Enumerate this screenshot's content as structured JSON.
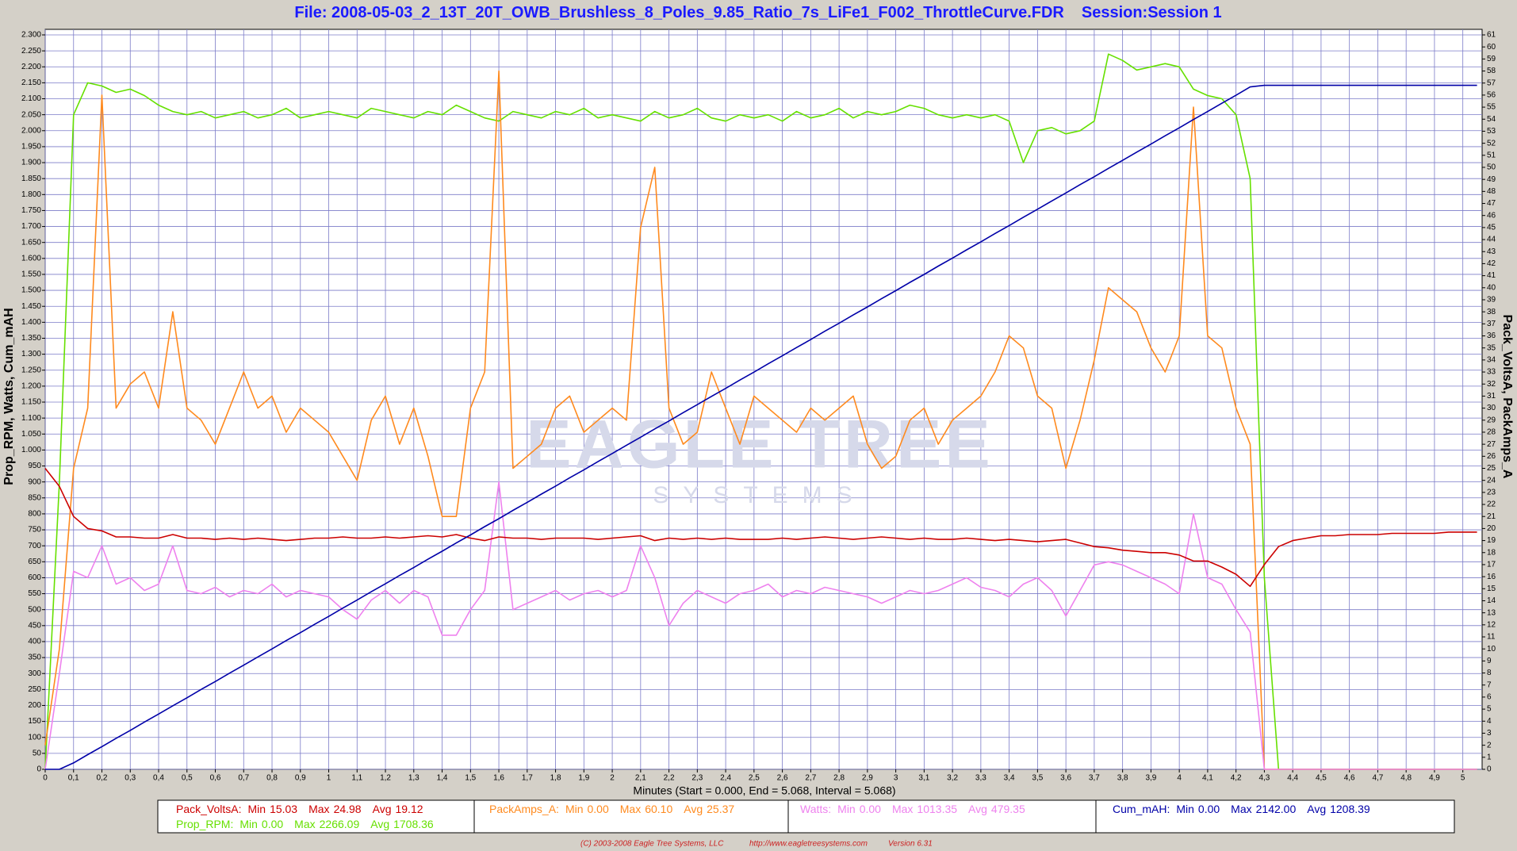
{
  "chart_data": {
    "type": "line",
    "title": "File: 2008-05-03_2_13T_20T_OWB_Brushless_8_Poles_9.85_Ratio_7s_LiFe1_F002_ThrottleCurve.FDR",
    "session": "Session:Session 1",
    "y_label": "Prop_RPM, Watts, Cum_mAH",
    "y2_label": "Pack_VoltsA, PackAmps_A",
    "x_label": "Minutes (Start = 0.000,  End = 5.068,  Interval =  5.068)",
    "watermark": [
      "EAGLE TREE",
      "SYSTEMS"
    ],
    "footer": [
      "(C) 2003-2008 Eagle Tree Systems, LLC",
      "http://www.eagletreesystems.com",
      "Version 6.31"
    ],
    "grid": true,
    "xlim": [
      0,
      5.068
    ],
    "ylim": [
      0,
      2300
    ],
    "y2lim": [
      0,
      61
    ],
    "xticks": [
      0,
      {
        "value": 0.1,
        "label": "0,1"
      },
      {
        "value": 0.2,
        "label": "0,2"
      },
      {
        "value": 0.3,
        "label": "0,3"
      },
      {
        "value": 0.4,
        "label": "0,4"
      },
      {
        "value": 0.5,
        "label": "0,5"
      },
      {
        "value": 0.6,
        "label": "0,6"
      },
      {
        "value": 0.7,
        "label": "0,7"
      },
      {
        "value": 0.8,
        "label": "0,8"
      },
      {
        "value": 0.9,
        "label": "0,9"
      },
      1,
      {
        "value": 1.1,
        "label": "1,1"
      },
      {
        "value": 1.2,
        "label": "1,2"
      },
      {
        "value": 1.3,
        "label": "1,3"
      },
      {
        "value": 1.4,
        "label": "1,4"
      },
      {
        "value": 1.5,
        "label": "1,5"
      },
      {
        "value": 1.6,
        "label": "1,6"
      },
      {
        "value": 1.7,
        "label": "1,7"
      },
      {
        "value": 1.8,
        "label": "1,8"
      },
      {
        "value": 1.9,
        "label": "1,9"
      },
      2,
      {
        "value": 2.1,
        "label": "2,1"
      },
      {
        "value": 2.2,
        "label": "2,2"
      },
      {
        "value": 2.3,
        "label": "2,3"
      },
      {
        "value": 2.4,
        "label": "2,4"
      },
      {
        "value": 2.5,
        "label": "2,5"
      },
      {
        "value": 2.6,
        "label": "2,6"
      },
      {
        "value": 2.7,
        "label": "2,7"
      },
      {
        "value": 2.8,
        "label": "2,8"
      },
      {
        "value": 2.9,
        "label": "2,9"
      },
      3,
      {
        "value": 3.1,
        "label": "3,1"
      },
      {
        "value": 3.2,
        "label": "3,2"
      },
      {
        "value": 3.3,
        "label": "3,3"
      },
      {
        "value": 3.4,
        "label": "3,4"
      },
      {
        "value": 3.5,
        "label": "3,5"
      },
      {
        "value": 3.6,
        "label": "3,6"
      },
      {
        "value": 3.7,
        "label": "3,7"
      },
      {
        "value": 3.8,
        "label": "3,8"
      },
      {
        "value": 3.9,
        "label": "3,9"
      },
      4,
      {
        "value": 4.1,
        "label": "4,1"
      },
      {
        "value": 4.2,
        "label": "4,2"
      },
      {
        "value": 4.3,
        "label": "4,3"
      },
      {
        "value": 4.4,
        "label": "4,4"
      },
      {
        "value": 4.5,
        "label": "4,5"
      },
      {
        "value": 4.6,
        "label": "4,6"
      },
      {
        "value": 4.7,
        "label": "4,7"
      },
      {
        "value": 4.8,
        "label": "4,8"
      },
      {
        "value": 4.9,
        "label": "4,9"
      },
      5
    ],
    "yticks": [
      0,
      50,
      100,
      150,
      200,
      250,
      300,
      350,
      400,
      450,
      500,
      550,
      600,
      650,
      700,
      750,
      800,
      850,
      900,
      950,
      {
        "value": 1000,
        "label": "1.000"
      },
      {
        "value": 1050,
        "label": "1.050"
      },
      {
        "value": 1100,
        "label": "1.100"
      },
      {
        "value": 1150,
        "label": "1.150"
      },
      {
        "value": 1200,
        "label": "1.200"
      },
      {
        "value": 1250,
        "label": "1.250"
      },
      {
        "value": 1300,
        "label": "1.300"
      },
      {
        "value": 1350,
        "label": "1.350"
      },
      {
        "value": 1400,
        "label": "1.400"
      },
      {
        "value": 1450,
        "label": "1.450"
      },
      {
        "value": 1500,
        "label": "1.500"
      },
      {
        "value": 1550,
        "label": "1.550"
      },
      {
        "value": 1600,
        "label": "1.600"
      },
      {
        "value": 1650,
        "label": "1.650"
      },
      {
        "value": 1700,
        "label": "1.700"
      },
      {
        "value": 1750,
        "label": "1.750"
      },
      {
        "value": 1800,
        "label": "1.800"
      },
      {
        "value": 1850,
        "label": "1.850"
      },
      {
        "value": 1900,
        "label": "1.900"
      },
      {
        "value": 1950,
        "label": "1.950"
      },
      {
        "value": 2000,
        "label": "2.000"
      },
      {
        "value": 2050,
        "label": "2.050"
      },
      {
        "value": 2100,
        "label": "2.100"
      },
      {
        "value": 2150,
        "label": "2.150"
      },
      {
        "value": 2200,
        "label": "2.200"
      },
      {
        "value": 2250,
        "label": "2.250"
      },
      {
        "value": 2300,
        "label": "2.300"
      }
    ],
    "y2ticks": [
      0,
      1,
      2,
      3,
      4,
      5,
      6,
      7,
      8,
      9,
      10,
      11,
      12,
      13,
      14,
      15,
      16,
      17,
      18,
      19,
      20,
      21,
      22,
      23,
      24,
      25,
      26,
      27,
      28,
      29,
      30,
      31,
      32,
      33,
      34,
      35,
      36,
      37,
      38,
      39,
      40,
      41,
      42,
      43,
      44,
      45,
      46,
      47,
      48,
      49,
      50,
      51,
      52,
      53,
      54,
      55,
      56,
      57,
      58,
      59,
      60,
      61
    ],
    "x": [
      0,
      0.05,
      0.1,
      0.15,
      0.2,
      0.25,
      0.3,
      0.35,
      0.4,
      0.45,
      0.5,
      0.55,
      0.6,
      0.65,
      0.7,
      0.75,
      0.8,
      0.85,
      0.9,
      0.95,
      1,
      1.05,
      1.1,
      1.15,
      1.2,
      1.25,
      1.3,
      1.35,
      1.4,
      1.45,
      1.5,
      1.55,
      1.6,
      1.65,
      1.7,
      1.75,
      1.8,
      1.85,
      1.9,
      1.95,
      2,
      2.05,
      2.1,
      2.15,
      2.2,
      2.25,
      2.3,
      2.35,
      2.4,
      2.45,
      2.5,
      2.55,
      2.6,
      2.65,
      2.7,
      2.75,
      2.8,
      2.85,
      2.9,
      2.95,
      3,
      3.05,
      3.1,
      3.15,
      3.2,
      3.25,
      3.3,
      3.35,
      3.4,
      3.45,
      3.5,
      3.55,
      3.6,
      3.65,
      3.7,
      3.75,
      3.8,
      3.85,
      3.9,
      3.95,
      4,
      4.05,
      4.1,
      4.15,
      4.2,
      4.25,
      4.3,
      4.35,
      4.4,
      4.45,
      4.5,
      4.55,
      4.6,
      4.65,
      4.7,
      4.75,
      4.8,
      4.85,
      4.9,
      4.95,
      5,
      5.05
    ],
    "series": [
      {
        "name": "Pack_VoltsA:",
        "color": "#cc0000",
        "axis": "y2",
        "stats": [
          {
            "label": "Min",
            "value": "15.03"
          },
          {
            "label": "Max",
            "value": "24.98"
          },
          {
            "label": "Avg",
            "value": "19.12"
          }
        ],
        "values": [
          25,
          23.5,
          21,
          20,
          19.8,
          19.3,
          19.3,
          19.2,
          19.2,
          19.5,
          19.2,
          19.2,
          19.1,
          19.2,
          19.1,
          19.2,
          19.1,
          19.0,
          19.1,
          19.2,
          19.2,
          19.3,
          19.2,
          19.2,
          19.3,
          19.2,
          19.3,
          19.4,
          19.3,
          19.5,
          19.2,
          19.0,
          19.3,
          19.2,
          19.2,
          19.1,
          19.2,
          19.2,
          19.2,
          19.1,
          19.2,
          19.3,
          19.4,
          19.0,
          19.2,
          19.1,
          19.2,
          19.1,
          19.2,
          19.1,
          19.1,
          19.1,
          19.2,
          19.1,
          19.2,
          19.3,
          19.2,
          19.1,
          19.2,
          19.3,
          19.2,
          19.1,
          19.2,
          19.1,
          19.1,
          19.2,
          19.1,
          19.0,
          19.1,
          19.0,
          18.9,
          19.0,
          19.1,
          18.8,
          18.5,
          18.4,
          18.2,
          18.1,
          18.0,
          18.0,
          17.8,
          17.3,
          17.3,
          16.8,
          16.2,
          15.2,
          17.0,
          18.5,
          19.0,
          19.2,
          19.4,
          19.4,
          19.5,
          19.5,
          19.5,
          19.6,
          19.6,
          19.6,
          19.6,
          19.7,
          19.7,
          19.7
        ]
      },
      {
        "name": "Prop_RPM:",
        "color": "#66e000",
        "stats": [
          {
            "label": "Min",
            "value": "0.00"
          },
          {
            "label": "Max",
            "value": "2266.09"
          },
          {
            "label": "Avg",
            "value": "1708.36"
          }
        ],
        "values": [
          0,
          900,
          2050,
          2150,
          2140,
          2120,
          2130,
          2110,
          2080,
          2060,
          2050,
          2060,
          2040,
          2050,
          2060,
          2040,
          2050,
          2070,
          2040,
          2050,
          2060,
          2050,
          2040,
          2070,
          2060,
          2050,
          2040,
          2060,
          2050,
          2080,
          2060,
          2040,
          2030,
          2060,
          2050,
          2040,
          2060,
          2050,
          2070,
          2040,
          2050,
          2040,
          2030,
          2060,
          2040,
          2050,
          2070,
          2040,
          2030,
          2050,
          2040,
          2050,
          2030,
          2060,
          2040,
          2050,
          2070,
          2040,
          2060,
          2050,
          2060,
          2080,
          2070,
          2050,
          2040,
          2050,
          2040,
          2050,
          2030,
          1900,
          2000,
          2010,
          1990,
          2000,
          2030,
          2240,
          2220,
          2190,
          2200,
          2210,
          2200,
          2130,
          2110,
          2100,
          2050,
          1850,
          600,
          0,
          0,
          0,
          0,
          0,
          0,
          0,
          0,
          0,
          0,
          0,
          0,
          0,
          0,
          0
        ]
      },
      {
        "name": "PackAmps_A:",
        "color": "#ff8a1e",
        "axis": "y2",
        "stats": [
          {
            "label": "Min",
            "value": "0.00"
          },
          {
            "label": "Max",
            "value": "60.10"
          },
          {
            "label": "Avg",
            "value": "25.37"
          }
        ],
        "values": [
          2,
          10,
          25,
          30,
          56,
          30,
          32,
          33,
          30,
          38,
          30,
          29,
          27,
          30,
          33,
          30,
          31,
          28,
          30,
          29,
          28,
          26,
          24,
          29,
          31,
          27,
          30,
          26,
          21,
          21,
          30,
          33,
          58,
          25,
          26,
          27,
          30,
          31,
          28,
          29,
          30,
          29,
          45,
          50,
          30,
          27,
          28,
          33,
          30,
          27,
          31,
          30,
          29,
          28,
          30,
          29,
          30,
          31,
          27,
          25,
          26,
          29,
          30,
          27,
          29,
          30,
          31,
          33,
          36,
          35,
          31,
          30,
          25,
          29,
          34,
          40,
          39,
          38,
          35,
          33,
          36,
          55,
          36,
          35,
          30,
          27,
          0,
          0,
          0,
          0,
          0,
          0,
          0,
          0,
          0,
          0,
          0,
          0,
          0,
          0,
          0,
          0
        ]
      },
      {
        "name": "Watts:",
        "color": "#ee82ee",
        "stats": [
          {
            "label": "Min",
            "value": "0.00"
          },
          {
            "label": "Max",
            "value": "1013.35"
          },
          {
            "label": "Avg",
            "value": "479.35"
          }
        ],
        "values": [
          0,
          300,
          620,
          600,
          700,
          580,
          600,
          560,
          580,
          700,
          560,
          550,
          570,
          540,
          560,
          550,
          580,
          540,
          560,
          550,
          540,
          500,
          470,
          530,
          560,
          520,
          560,
          540,
          420,
          420,
          500,
          560,
          900,
          500,
          520,
          540,
          560,
          530,
          550,
          560,
          540,
          560,
          700,
          600,
          450,
          520,
          560,
          540,
          520,
          550,
          560,
          580,
          540,
          560,
          550,
          570,
          560,
          550,
          540,
          520,
          540,
          560,
          550,
          560,
          580,
          600,
          570,
          560,
          540,
          580,
          600,
          560,
          480,
          560,
          640,
          650,
          640,
          620,
          600,
          580,
          550,
          800,
          600,
          580,
          500,
          430,
          0,
          0,
          0,
          0,
          0,
          0,
          0,
          0,
          0,
          0,
          0,
          0,
          0,
          0,
          0,
          0
        ]
      },
      {
        "name": "Cum_mAH:",
        "color": "#0000a8",
        "stats": [
          {
            "label": "Min",
            "value": "0.00"
          },
          {
            "label": "Max",
            "value": "2142.00"
          },
          {
            "label": "Avg",
            "value": "1208.39"
          }
        ],
        "values": [
          0,
          0,
          20,
          46,
          71,
          97,
          122,
          148,
          173,
          199,
          224,
          250,
          275,
          301,
          326,
          352,
          377,
          403,
          428,
          454,
          479,
          505,
          530,
          556,
          581,
          607,
          632,
          658,
          683,
          709,
          734,
          760,
          785,
          811,
          836,
          862,
          887,
          913,
          938,
          964,
          989,
          1015,
          1040,
          1066,
          1091,
          1117,
          1142,
          1168,
          1193,
          1219,
          1244,
          1270,
          1295,
          1321,
          1346,
          1372,
          1397,
          1423,
          1448,
          1474,
          1499,
          1525,
          1550,
          1576,
          1601,
          1627,
          1652,
          1678,
          1703,
          1729,
          1754,
          1780,
          1805,
          1831,
          1856,
          1882,
          1907,
          1933,
          1958,
          1984,
          2009,
          2035,
          2060,
          2086,
          2111,
          2137,
          2142,
          2142,
          2142,
          2142,
          2142,
          2142,
          2142,
          2142,
          2142,
          2142,
          2142,
          2142,
          2142,
          2142,
          2142,
          2142
        ]
      }
    ]
  }
}
